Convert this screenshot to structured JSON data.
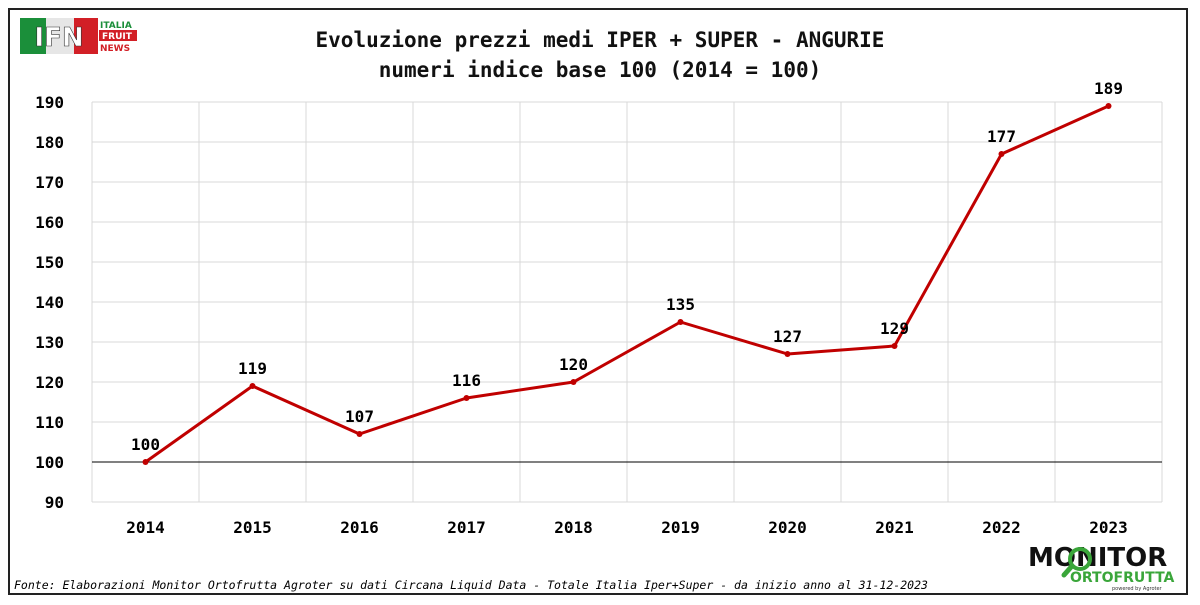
{
  "header": {
    "title_line1": "Evoluzione prezzi medi IPER + SUPER - ANGURIE",
    "title_line2": "numeri indice base 100 (2014 = 100)"
  },
  "logo_ifn": {
    "short": "IFN",
    "words": [
      "ITALIA",
      "FRUIT",
      "NEWS"
    ]
  },
  "logo_monitor": {
    "line1": "MONITOR",
    "line2": "ORTOFRUTTA",
    "tagline": "powered by Agroter"
  },
  "footer": {
    "source": "Fonte: Elaborazioni Monitor Ortofrutta Agroter su dati Circana Liquid Data - Totale Italia Iper+Super -  da inizio anno al 31-12-2023"
  },
  "colors": {
    "line": "#C00000",
    "grid": "#D9D9D9",
    "baseline": "#000000"
  },
  "chart_data": {
    "type": "line",
    "title": "Evoluzione prezzi medi IPER + SUPER - ANGURIE",
    "subtitle": "numeri indice base 100 (2014 = 100)",
    "categories": [
      "2014",
      "2015",
      "2016",
      "2017",
      "2018",
      "2019",
      "2020",
      "2021",
      "2022",
      "2023"
    ],
    "values": [
      100,
      119,
      107,
      116,
      120,
      135,
      127,
      129,
      177,
      189
    ],
    "ylim": [
      90,
      190
    ],
    "yticks": [
      90,
      100,
      110,
      120,
      130,
      140,
      150,
      160,
      170,
      180,
      190
    ],
    "reference_line": 100,
    "grid": true,
    "data_labels": true,
    "legend": "none"
  }
}
